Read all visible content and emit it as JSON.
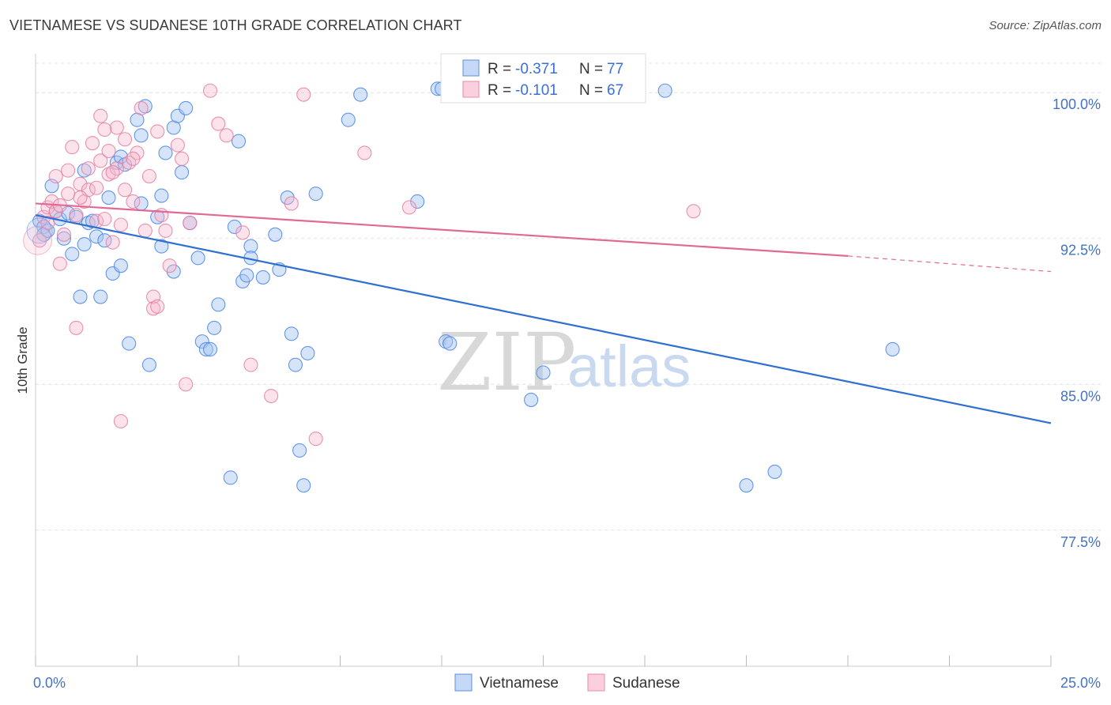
{
  "header": {
    "title": "VIETNAMESE VS SUDANESE 10TH GRADE CORRELATION CHART",
    "source": "Source: ZipAtlas.com"
  },
  "legend": {
    "r_label": "R =",
    "n_label": "N =",
    "series": [
      {
        "r": "-0.371",
        "n": "77"
      },
      {
        "r": "-0.101",
        "n": "67"
      }
    ]
  },
  "watermark": {
    "zip": "ZIP",
    "atlas": "atlas"
  },
  "chart_data": {
    "type": "scatter",
    "ylabel": "10th Grade",
    "xlim": [
      0,
      25
    ],
    "ylim": [
      70.5,
      102
    ],
    "x_tick_labels": [
      {
        "value": 0,
        "label": "0.0%"
      },
      {
        "value": 25,
        "label": "25.0%"
      }
    ],
    "y_ticks": [
      {
        "value": 100,
        "label": "100.0%"
      },
      {
        "value": 92.5,
        "label": "92.5%"
      },
      {
        "value": 85,
        "label": "85.0%"
      },
      {
        "value": 77.5,
        "label": "77.5%"
      }
    ],
    "grid": "horizontal dashed",
    "series": [
      {
        "name": "Vietnamese",
        "color": "#4a86e8",
        "trend": {
          "x0": 0,
          "y0": 93.7,
          "x1": 25,
          "y1": 83.0
        },
        "points": [
          [
            0.1,
            93.4
          ],
          [
            0.2,
            93.1
          ],
          [
            0.2,
            92.7
          ],
          [
            0.3,
            92.9
          ],
          [
            0.4,
            95.2
          ],
          [
            0.5,
            93.9
          ],
          [
            0.6,
            93.5
          ],
          [
            0.7,
            92.5
          ],
          [
            0.8,
            93.8
          ],
          [
            0.9,
            91.7
          ],
          [
            1.0,
            93.6
          ],
          [
            1.1,
            89.5
          ],
          [
            1.2,
            92.2
          ],
          [
            1.2,
            96.0
          ],
          [
            1.3,
            93.3
          ],
          [
            1.4,
            93.4
          ],
          [
            1.5,
            92.6
          ],
          [
            1.6,
            89.5
          ],
          [
            1.7,
            92.4
          ],
          [
            1.8,
            94.6
          ],
          [
            1.9,
            90.7
          ],
          [
            2.0,
            96.4
          ],
          [
            2.1,
            96.7
          ],
          [
            2.1,
            91.1
          ],
          [
            2.2,
            96.3
          ],
          [
            2.3,
            87.1
          ],
          [
            2.5,
            98.6
          ],
          [
            2.6,
            97.8
          ],
          [
            2.6,
            94.3
          ],
          [
            2.7,
            99.3
          ],
          [
            2.8,
            86.0
          ],
          [
            3.0,
            93.6
          ],
          [
            3.1,
            94.7
          ],
          [
            3.1,
            92.1
          ],
          [
            3.2,
            96.9
          ],
          [
            3.4,
            90.8
          ],
          [
            3.4,
            98.2
          ],
          [
            3.5,
            98.8
          ],
          [
            3.6,
            95.9
          ],
          [
            3.7,
            99.2
          ],
          [
            3.8,
            93.3
          ],
          [
            4.0,
            91.5
          ],
          [
            4.1,
            87.2
          ],
          [
            4.2,
            86.8
          ],
          [
            4.3,
            86.8
          ],
          [
            4.4,
            87.9
          ],
          [
            4.5,
            89.1
          ],
          [
            4.8,
            80.2
          ],
          [
            4.9,
            93.1
          ],
          [
            5.0,
            97.5
          ],
          [
            5.1,
            90.3
          ],
          [
            5.2,
            90.6
          ],
          [
            5.3,
            92.1
          ],
          [
            5.3,
            91.5
          ],
          [
            5.6,
            90.5
          ],
          [
            5.9,
            92.7
          ],
          [
            6.0,
            90.9
          ],
          [
            6.2,
            94.6
          ],
          [
            6.3,
            87.6
          ],
          [
            6.4,
            86.0
          ],
          [
            6.5,
            81.6
          ],
          [
            6.6,
            79.8
          ],
          [
            6.7,
            86.6
          ],
          [
            6.9,
            94.8
          ],
          [
            7.7,
            98.6
          ],
          [
            8.0,
            99.9
          ],
          [
            9.4,
            94.4
          ],
          [
            9.9,
            100.2
          ],
          [
            10.0,
            100.2
          ],
          [
            10.1,
            87.2
          ],
          [
            10.2,
            87.1
          ],
          [
            12.2,
            84.2
          ],
          [
            12.5,
            85.6
          ],
          [
            15.5,
            100.1
          ],
          [
            17.5,
            79.8
          ],
          [
            18.2,
            80.5
          ],
          [
            21.1,
            86.8
          ]
        ]
      },
      {
        "name": "Sudanese",
        "color": "#e57fa1",
        "trend": {
          "x0": 0,
          "y0": 94.3,
          "x1": 20,
          "y1": 91.6,
          "dash_x1": 25,
          "dash_y1": 90.8
        },
        "points": [
          [
            0.1,
            92.4
          ],
          [
            0.2,
            93.6
          ],
          [
            0.3,
            94.1
          ],
          [
            0.4,
            94.4
          ],
          [
            0.5,
            95.7
          ],
          [
            0.5,
            93.9
          ],
          [
            0.6,
            91.2
          ],
          [
            0.7,
            92.7
          ],
          [
            0.8,
            94.8
          ],
          [
            0.8,
            96.0
          ],
          [
            0.9,
            97.2
          ],
          [
            1.0,
            93.7
          ],
          [
            1.0,
            87.9
          ],
          [
            1.1,
            95.3
          ],
          [
            1.2,
            94.4
          ],
          [
            1.3,
            95.0
          ],
          [
            1.3,
            96.1
          ],
          [
            1.4,
            97.4
          ],
          [
            1.5,
            95.1
          ],
          [
            1.5,
            93.4
          ],
          [
            1.6,
            96.5
          ],
          [
            1.6,
            98.8
          ],
          [
            1.7,
            93.5
          ],
          [
            1.8,
            95.8
          ],
          [
            1.8,
            97.0
          ],
          [
            1.9,
            92.3
          ],
          [
            2.0,
            96.1
          ],
          [
            2.0,
            98.2
          ],
          [
            2.1,
            93.2
          ],
          [
            2.2,
            95.0
          ],
          [
            2.2,
            97.6
          ],
          [
            2.3,
            96.4
          ],
          [
            2.4,
            94.4
          ],
          [
            2.5,
            96.9
          ],
          [
            2.6,
            99.2
          ],
          [
            2.7,
            92.9
          ],
          [
            2.8,
            95.7
          ],
          [
            2.9,
            89.5
          ],
          [
            2.9,
            88.9
          ],
          [
            3.0,
            89.0
          ],
          [
            3.0,
            98.0
          ],
          [
            3.2,
            92.9
          ],
          [
            3.3,
            91.1
          ],
          [
            3.5,
            97.3
          ],
          [
            3.6,
            96.6
          ],
          [
            3.7,
            85.0
          ],
          [
            3.8,
            93.3
          ],
          [
            4.3,
            100.1
          ],
          [
            4.5,
            98.4
          ],
          [
            4.7,
            97.8
          ],
          [
            5.1,
            92.8
          ],
          [
            5.3,
            86.0
          ],
          [
            5.8,
            84.4
          ],
          [
            6.3,
            94.3
          ],
          [
            6.6,
            99.9
          ],
          [
            6.9,
            82.2
          ],
          [
            8.1,
            96.9
          ],
          [
            9.2,
            94.1
          ],
          [
            16.2,
            93.9
          ],
          [
            2.1,
            83.1
          ],
          [
            1.7,
            98.1
          ],
          [
            0.3,
            93.3
          ],
          [
            0.6,
            94.2
          ],
          [
            1.9,
            95.9
          ],
          [
            2.4,
            96.6
          ],
          [
            1.1,
            94.6
          ],
          [
            3.1,
            93.7
          ]
        ]
      }
    ]
  }
}
